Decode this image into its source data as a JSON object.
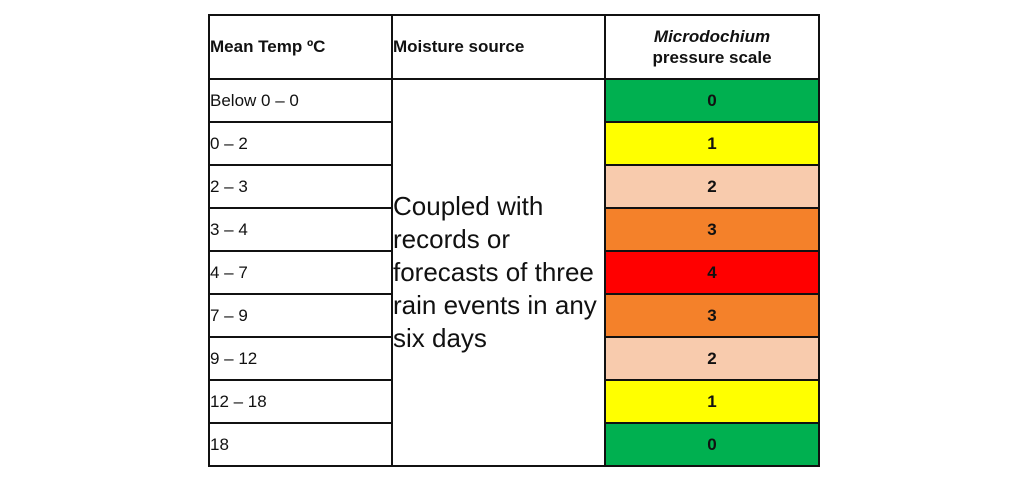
{
  "table": {
    "headers": {
      "temp": "Mean Temp ºC",
      "moisture": "Moisture source",
      "scale_italic": "Microdochium",
      "scale_sub": "pressure scale"
    },
    "moisture_text": "Coupled with records or forecasts of three rain events in any six days",
    "rows": [
      {
        "temp": "Below 0 – 0",
        "scale": "0",
        "color": "#00b050"
      },
      {
        "temp": "0 – 2",
        "scale": "1",
        "color": "#ffff00"
      },
      {
        "temp": "2 – 3",
        "scale": "2",
        "color": "#f8cbad"
      },
      {
        "temp": "3 – 4",
        "scale": "3",
        "color": "#f4812a"
      },
      {
        "temp": "4 – 7",
        "scale": "4",
        "color": "#ff0000"
      },
      {
        "temp": "7 – 9",
        "scale": "3",
        "color": "#f4812a"
      },
      {
        "temp": "9 – 12",
        "scale": "2",
        "color": "#f8cbad"
      },
      {
        "temp": "12 – 18",
        "scale": "1",
        "color": "#ffff00"
      },
      {
        "temp": "18",
        "scale": "0",
        "color": "#00b050"
      }
    ]
  }
}
